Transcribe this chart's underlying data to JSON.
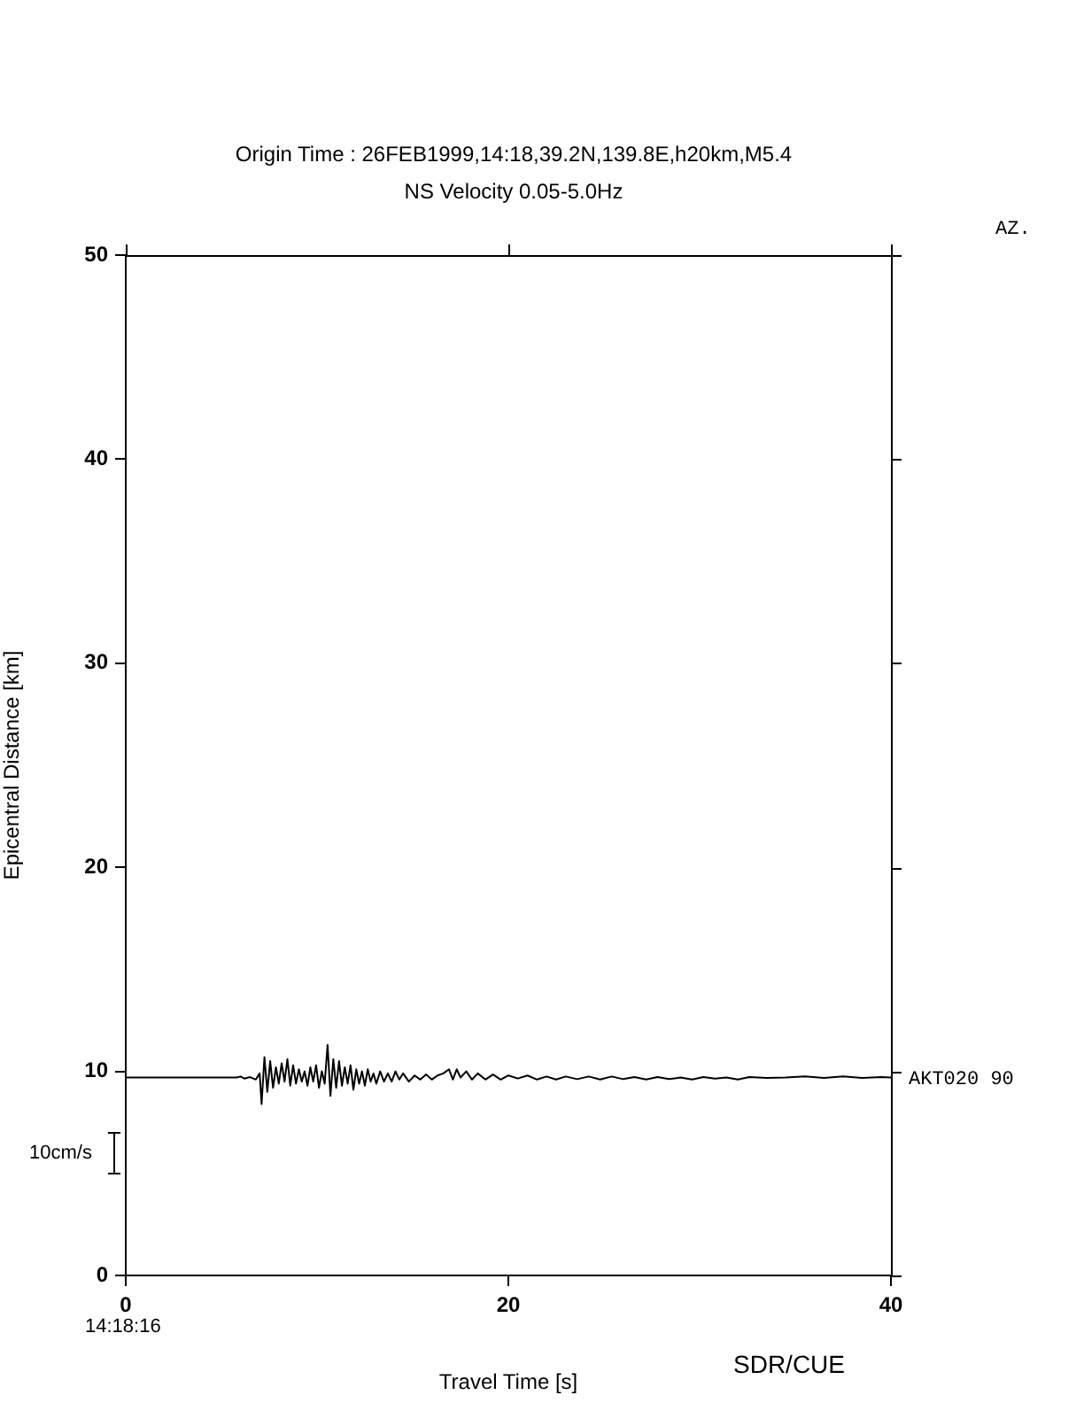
{
  "chart_data": {
    "type": "line",
    "title": "Origin Time : 26FEB1999,14:18,39.2N,139.8E,h20km,M5.4",
    "subtitle": "NS Velocity 0.05-5.0Hz",
    "xlabel": "Travel Time [s]",
    "ylabel": "Epicentral Distance [km]",
    "xlim": [
      0,
      40
    ],
    "xticks": [
      0,
      20,
      40
    ],
    "ylim": [
      0,
      50
    ],
    "yticks": [
      0,
      10,
      20,
      30,
      40,
      50
    ],
    "grid": false,
    "legend": false,
    "marker": "none",
    "line_style": "solid",
    "annotations": [
      "AZ.",
      {
        "text": "AKT020 90",
        "x": 40,
        "y": 9.7
      },
      "10cm/s",
      "14:18:16",
      "SDR/CUE"
    ],
    "series": [
      {
        "color": "#000000",
        "x": [
          0,
          5.8,
          6.0,
          6.2,
          6.5,
          6.8,
          7.0,
          7.1,
          7.25,
          7.4,
          7.55,
          7.7,
          7.85,
          8.0,
          8.15,
          8.3,
          8.45,
          8.6,
          8.75,
          8.9,
          9.05,
          9.2,
          9.35,
          9.5,
          9.65,
          9.8,
          9.95,
          10.1,
          10.25,
          10.4,
          10.55,
          10.7,
          10.85,
          11.0,
          11.15,
          11.3,
          11.45,
          11.6,
          11.75,
          11.9,
          12.05,
          12.2,
          12.35,
          12.5,
          12.65,
          12.8,
          12.95,
          13.1,
          13.3,
          13.5,
          13.7,
          13.9,
          14.1,
          14.3,
          14.5,
          14.8,
          15.1,
          15.4,
          15.7,
          16.0,
          16.3,
          16.6,
          16.9,
          17.1,
          17.3,
          17.5,
          17.8,
          18.1,
          18.4,
          18.8,
          19.2,
          19.6,
          20.0,
          20.5,
          21.0,
          21.5,
          22.0,
          22.5,
          23.0,
          23.6,
          24.2,
          24.8,
          25.4,
          26.0,
          26.6,
          27.2,
          27.8,
          28.4,
          29.0,
          29.6,
          30.2,
          30.8,
          31.4,
          32.0,
          32.6,
          33.5,
          34.5,
          35.5,
          36.5,
          37.5,
          38.5,
          39.5,
          40.0
        ],
        "values": [
          9.7,
          9.7,
          9.75,
          9.65,
          9.72,
          9.6,
          9.9,
          8.4,
          10.7,
          9.0,
          10.5,
          9.2,
          10.2,
          9.4,
          10.4,
          9.5,
          10.6,
          9.3,
          10.3,
          9.4,
          10.1,
          9.5,
          10.0,
          9.3,
          10.2,
          9.5,
          10.3,
          9.2,
          10.0,
          9.4,
          11.3,
          8.8,
          10.6,
          9.2,
          10.5,
          9.3,
          10.2,
          9.4,
          10.3,
          9.1,
          10.1,
          9.4,
          10.0,
          9.3,
          10.1,
          9.5,
          9.9,
          9.4,
          10.0,
          9.5,
          9.9,
          9.5,
          10.0,
          9.6,
          9.9,
          9.5,
          9.8,
          9.6,
          9.85,
          9.6,
          9.8,
          9.9,
          10.1,
          9.6,
          10.1,
          9.7,
          10.0,
          9.6,
          9.9,
          9.6,
          9.85,
          9.6,
          9.8,
          9.65,
          9.8,
          9.6,
          9.75,
          9.6,
          9.75,
          9.62,
          9.75,
          9.6,
          9.75,
          9.62,
          9.72,
          9.6,
          9.72,
          9.62,
          9.7,
          9.6,
          9.72,
          9.65,
          9.7,
          9.6,
          9.72,
          9.68,
          9.7,
          9.75,
          9.68,
          9.75,
          9.68,
          9.72,
          9.7
        ]
      }
    ]
  }
}
